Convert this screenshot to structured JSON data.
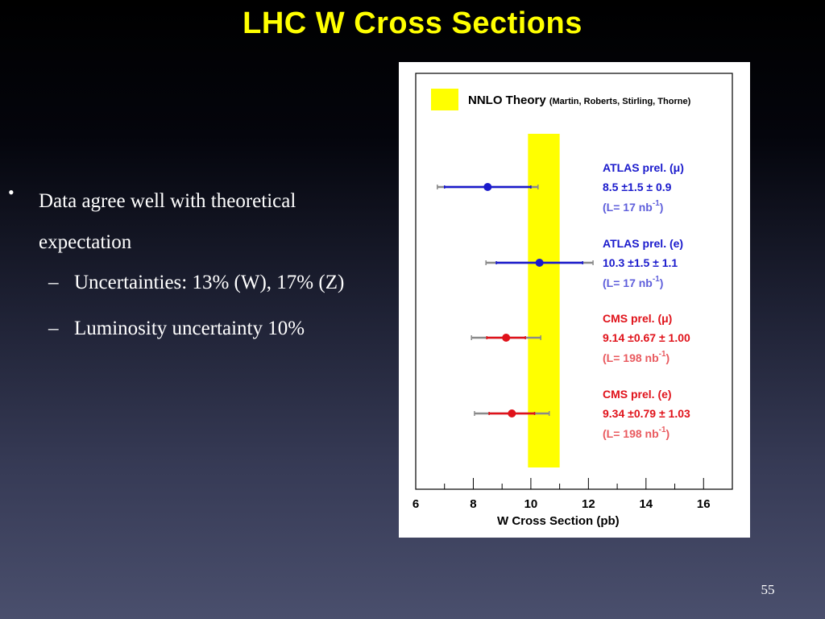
{
  "slide": {
    "title": "LHC W Cross Sections",
    "bullet": "Data agree well with theoretical expectation",
    "bullet_marker": "•",
    "sub_bullets": [
      "Uncertainties: 13% (W), 17% (Z)",
      "Luminosity uncertainty 10%"
    ],
    "sub_marker": "–",
    "page_number": "55"
  },
  "colors": {
    "title": "#ffff00",
    "theory_band": "#ffff00",
    "atlas": "#1a1acc",
    "cms": "#e0121a",
    "syst_bar": "#8a8a8a"
  },
  "chart_data": {
    "type": "scatter",
    "xlabel": "W Cross Section (pb)",
    "xlim": [
      6,
      17
    ],
    "xticks": [
      6,
      8,
      10,
      12,
      14,
      16
    ],
    "xtick_labels": [
      "6",
      "8",
      "10",
      "12",
      "14",
      "16"
    ],
    "theory": {
      "label": "NNLO Theory",
      "authors": "(Martin, Roberts, Stirling, Thorne)",
      "band": [
        9.9,
        11.0
      ]
    },
    "series": [
      {
        "name": "ATLAS prel. (μ)",
        "value_text": "8.5 ±1.5 ± 0.9",
        "lumi_text": "(L= 17 nb",
        "lumi_unit": "-1",
        "value": 8.5,
        "stat": 1.5,
        "syst": 0.9,
        "group": "atlas"
      },
      {
        "name": "ATLAS prel. (e)",
        "value_text": "10.3 ±1.5 ± 1.1",
        "lumi_text": "(L= 17 nb",
        "lumi_unit": "-1",
        "value": 10.3,
        "stat": 1.5,
        "syst": 1.1,
        "group": "atlas"
      },
      {
        "name": "CMS prel. (μ)",
        "value_text": "9.14 ±0.67 ± 1.00",
        "lumi_text": "(L= 198 nb",
        "lumi_unit": "-1",
        "value": 9.14,
        "stat": 0.67,
        "syst": 1.0,
        "group": "cms"
      },
      {
        "name": "CMS prel. (e)",
        "value_text": "9.34 ±0.79 ± 1.03",
        "lumi_text": "(L= 198 nb",
        "lumi_unit": "-1",
        "value": 9.34,
        "stat": 0.79,
        "syst": 1.03,
        "group": "cms"
      }
    ]
  }
}
